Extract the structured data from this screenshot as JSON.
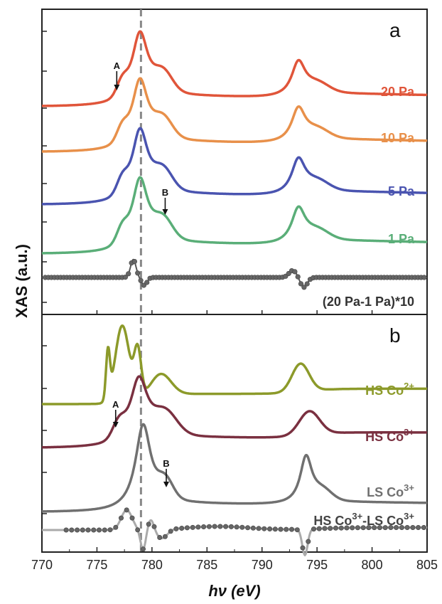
{
  "chart_data": {
    "type": "line",
    "xlabel": "hν (eV)",
    "ylabel": "XAS (a.u.)",
    "xlim": [
      770,
      805
    ],
    "xticks": [
      770,
      775,
      780,
      785,
      790,
      795,
      800,
      805
    ],
    "reference_line_x": 779.0,
    "panels": [
      {
        "letter": "a",
        "series": [
          {
            "name": "20 Pa",
            "color": "#e0553a"
          },
          {
            "name": "10 Pa",
            "color": "#e8904a"
          },
          {
            "name": "5 Pa",
            "color": "#4a54b0"
          },
          {
            "name": "1 Pa",
            "color": "#5aae78"
          },
          {
            "name": "(20 Pa-1 Pa)*10",
            "color": "#555555"
          }
        ],
        "annotations": [
          {
            "text": "A",
            "x": 776.8
          },
          {
            "text": "B",
            "x": 781.2
          }
        ]
      },
      {
        "letter": "b",
        "series": [
          {
            "name": "HS Co2+",
            "label_main": "HS Co",
            "label_sup": "2+",
            "color": "#8c9a2a"
          },
          {
            "name": "HS Co3+",
            "label_main": "HS Co",
            "label_sup": "3+",
            "color": "#7a3040"
          },
          {
            "name": "LS Co3+",
            "label_main": "LS Co",
            "label_sup": "3+",
            "color": "#707070"
          },
          {
            "name": "HS Co3+-LS Co3+",
            "label_a": "HS Co",
            "sup_a": "3+",
            "label_b": "-LS Co",
            "sup_b": "3+",
            "color": "#707070"
          }
        ],
        "annotations": [
          {
            "text": "A",
            "x": 776.7
          },
          {
            "text": "B",
            "x": 781.3
          }
        ]
      }
    ]
  }
}
